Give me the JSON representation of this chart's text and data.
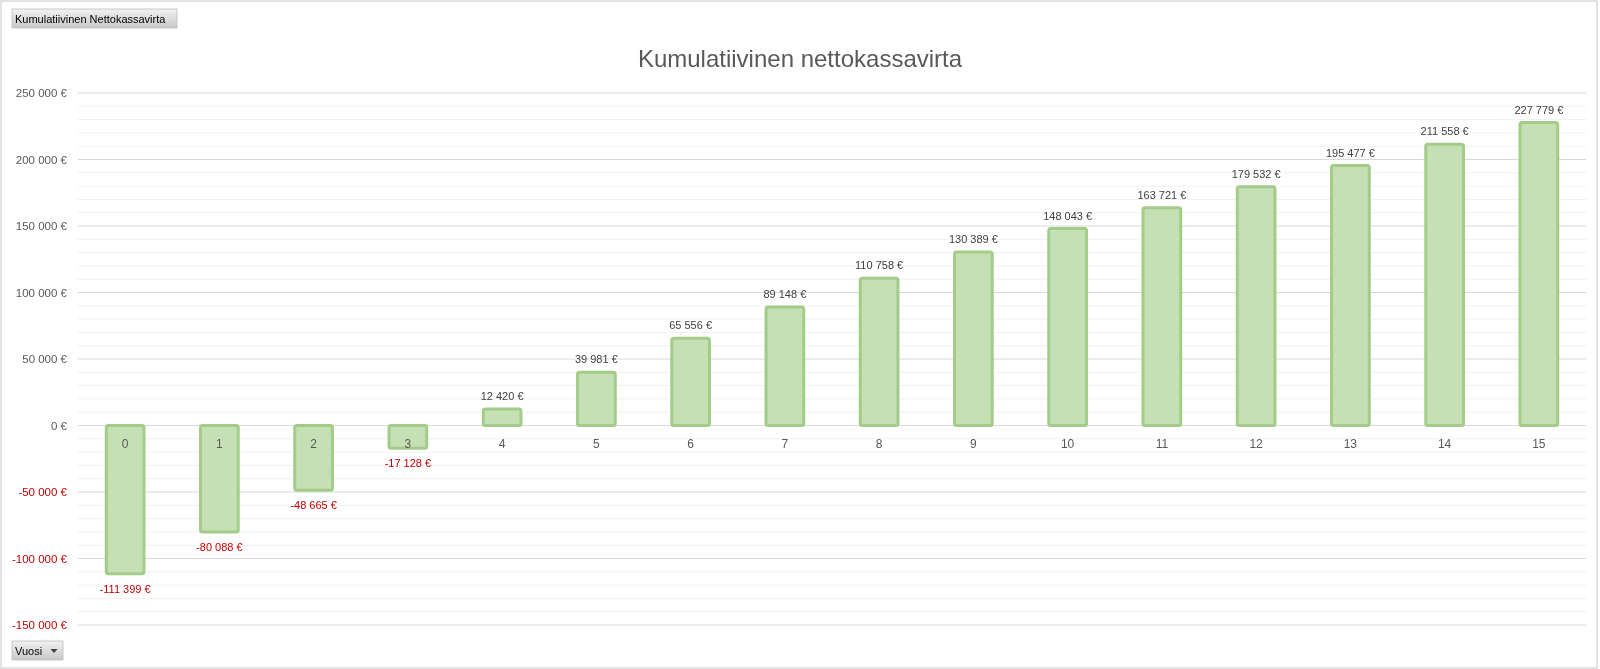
{
  "chart_data": {
    "type": "bar",
    "title": "Kumulatiivinen nettokassavirta",
    "xlabel": "Vuosi",
    "annotations": [
      "Kumulatiivinen Nettokassavirta"
    ],
    "categories": [
      "0",
      "1",
      "2",
      "3",
      "4",
      "5",
      "6",
      "7",
      "8",
      "9",
      "10",
      "11",
      "12",
      "13",
      "14",
      "15"
    ],
    "values": [
      -111399,
      -80088,
      -48665,
      -17128,
      12420,
      39981,
      65556,
      89148,
      110758,
      130389,
      148043,
      163721,
      179532,
      195477,
      211558,
      227779
    ],
    "value_labels": [
      "-111 399 €",
      "-80 088 €",
      "-48 665 €",
      "-17 128 €",
      "12 420 €",
      "39 981 €",
      "65 556 €",
      "89 148 €",
      "110 758 €",
      "130 389 €",
      "148 043 €",
      "163 721 €",
      "179 532 €",
      "195 477 €",
      "211 558 €",
      "227 779 €"
    ],
    "color": "#c5e0b4",
    "ylim": [
      -150000,
      250000
    ],
    "yticks": [
      {
        "value": -150000,
        "label": "-150 000 €"
      },
      {
        "value": -140000,
        "label": null
      },
      {
        "value": -130000,
        "label": null
      },
      {
        "value": -120000,
        "label": null
      },
      {
        "value": -110000,
        "label": null
      },
      {
        "value": -100000,
        "label": "-100 000 €"
      },
      {
        "value": -90000,
        "label": null
      },
      {
        "value": -80000,
        "label": null
      },
      {
        "value": -70000,
        "label": null
      },
      {
        "value": -60000,
        "label": null
      },
      {
        "value": -50000,
        "label": "-50 000 €"
      },
      {
        "value": -40000,
        "label": null
      },
      {
        "value": -30000,
        "label": null
      },
      {
        "value": -20000,
        "label": null
      },
      {
        "value": -10000,
        "label": null
      },
      {
        "value": 0,
        "label": "0 €"
      },
      {
        "value": 10000,
        "label": null
      },
      {
        "value": 20000,
        "label": null
      },
      {
        "value": 30000,
        "label": null
      },
      {
        "value": 40000,
        "label": null
      },
      {
        "value": 50000,
        "label": "50 000 €"
      },
      {
        "value": 60000,
        "label": null
      },
      {
        "value": 70000,
        "label": null
      },
      {
        "value": 80000,
        "label": null
      },
      {
        "value": 90000,
        "label": null
      },
      {
        "value": 100000,
        "label": "100 000 €"
      },
      {
        "value": 110000,
        "label": null
      },
      {
        "value": 120000,
        "label": null
      },
      {
        "value": 130000,
        "label": null
      },
      {
        "value": 140000,
        "label": null
      },
      {
        "value": 150000,
        "label": "150 000 €"
      },
      {
        "value": 160000,
        "label": null
      },
      {
        "value": 170000,
        "label": null
      },
      {
        "value": 180000,
        "label": null
      },
      {
        "value": 190000,
        "label": null
      },
      {
        "value": 200000,
        "label": "200 000 €"
      },
      {
        "value": 210000,
        "label": null
      },
      {
        "value": 220000,
        "label": null
      },
      {
        "value": 230000,
        "label": null
      },
      {
        "value": 240000,
        "label": null
      },
      {
        "value": 250000,
        "label": "250 000 €"
      }
    ],
    "grid": true
  }
}
